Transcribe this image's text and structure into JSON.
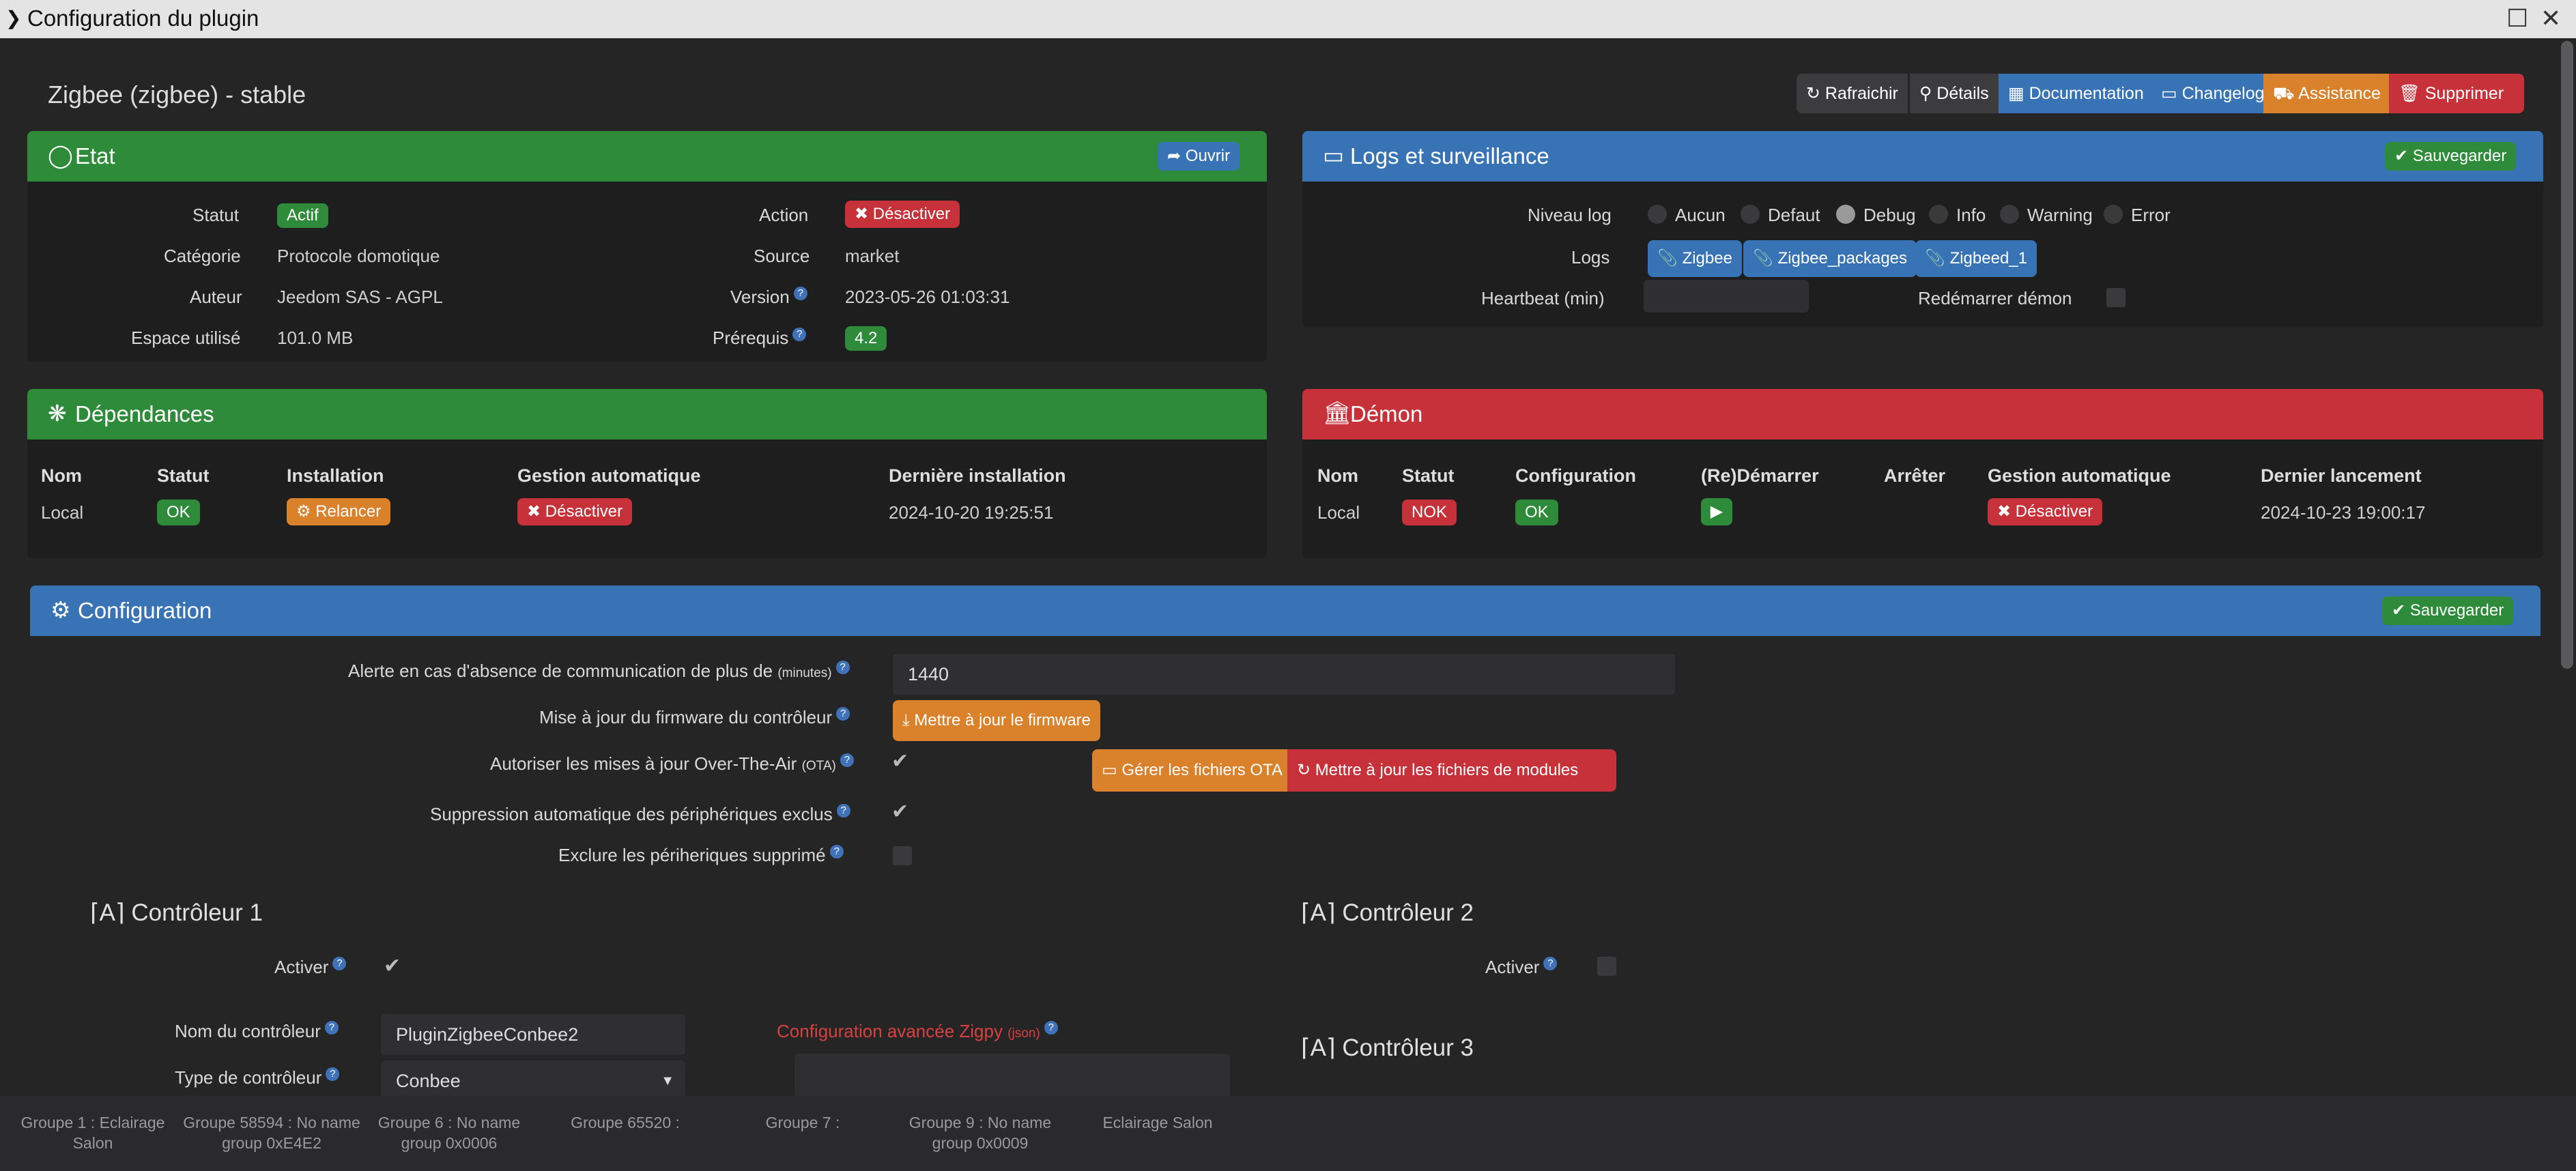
{
  "window": {
    "title": "Configuration du plugin"
  },
  "plugin": {
    "title": "Zigbee (zigbee) - stable"
  },
  "toolbar": {
    "refresh": "Rafraichir",
    "details": "Détails",
    "documentation": "Documentation",
    "changelog": "Changelog",
    "assistance": "Assistance",
    "delete": "Supprimer"
  },
  "etat": {
    "title": "Etat",
    "open": "Ouvrir",
    "status_label": "Statut",
    "status_value": "Actif",
    "category_label": "Catégorie",
    "category_value": "Protocole domotique",
    "author_label": "Auteur",
    "author_value": "Jeedom SAS - AGPL",
    "space_label": "Espace utilisé",
    "space_value": "101.0 MB",
    "action_label": "Action",
    "action_value": "Désactiver",
    "source_label": "Source",
    "source_value": "market",
    "version_label": "Version",
    "version_value": "2023-05-26 01:03:31",
    "prereq_label": "Prérequis",
    "prereq_value": "4.2"
  },
  "logs": {
    "title": "Logs et surveillance",
    "save": "Sauvegarder",
    "level_label": "Niveau log",
    "levels": [
      "Aucun",
      "Defaut",
      "Debug",
      "Info",
      "Warning",
      "Error"
    ],
    "selected_level": "Debug",
    "logs_label": "Logs",
    "log_files": [
      "Zigbee",
      "Zigbee_packages",
      "Zigbeed_1"
    ],
    "heartbeat_label": "Heartbeat (min)",
    "restart_label": "Redémarrer démon"
  },
  "deps": {
    "title": "Dépendances",
    "headers": [
      "Nom",
      "Statut",
      "Installation",
      "Gestion automatique",
      "Dernière installation"
    ],
    "row": {
      "name": "Local",
      "status": "OK",
      "install": "Relancer",
      "auto": "Désactiver",
      "last": "2024-10-20 19:25:51"
    }
  },
  "daemon": {
    "title": "Démon",
    "headers": [
      "Nom",
      "Statut",
      "Configuration",
      "(Re)Démarrer",
      "Arrêter",
      "Gestion automatique",
      "Dernier lancement"
    ],
    "row": {
      "name": "Local",
      "status": "NOK",
      "config": "OK",
      "auto": "Désactiver",
      "last": "2024-10-23 19:00:17"
    }
  },
  "config": {
    "title": "Configuration",
    "save": "Sauvegarder",
    "alert_label": "Alerte en cas d'absence de communication de plus de",
    "alert_unit": "(minutes)",
    "alert_value": "1440",
    "firmware_label": "Mise à jour du firmware du contrôleur",
    "firmware_button": "Mettre à jour le firmware",
    "ota_label": "Autoriser les mises à jour Over-The-Air",
    "ota_unit": "(OTA)",
    "ota_files_button": "Gérer les fichiers OTA",
    "module_files_button": "Mettre à jour les fichiers de modules",
    "auto_remove_label": "Suppression automatique des périphériques exclus",
    "exclude_label": "Exclure les périheriques supprimé"
  },
  "controllers": {
    "c1_title": "Contrôleur 1",
    "c1_activate": "Activer",
    "c1_name_label": "Nom du contrôleur",
    "c1_name_value": "PluginZigbeeConbee2",
    "c1_type_label": "Type de contrôleur",
    "c1_type_value": "Conbee",
    "advanced_label": "Configuration avancée Zigpy",
    "advanced_unit": "(json)",
    "c2_title": "Contrôleur 2",
    "c2_activate": "Activer",
    "c3_title": "Contrôleur 3"
  },
  "bottom_groups": [
    "Groupe 1 : Eclairage Salon",
    "Groupe 58594 : No name group 0xE4E2",
    "Groupe 6 : No name group 0x0006",
    "Groupe 65520 :",
    "Groupe 7 :",
    "Groupe 9 : No name group 0x0009",
    "Eclairage Salon"
  ],
  "colors": {
    "green": "#2e8b3a",
    "blue": "#3873b5",
    "red": "#c7313a",
    "orange": "#d9822b"
  }
}
